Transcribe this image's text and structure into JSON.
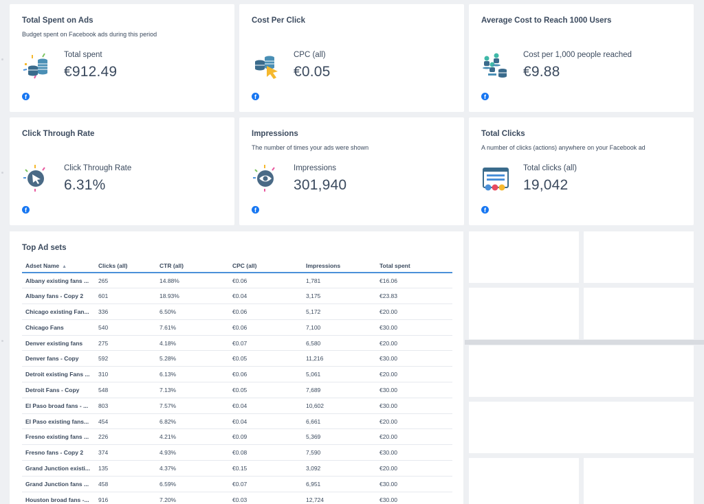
{
  "cards": [
    {
      "title": "Total Spent on Ads",
      "subtitle": "Budget spent on Facebook ads during this period",
      "label": "Total spent",
      "value": "€912.49",
      "icon": "coins-stack-icon"
    },
    {
      "title": "Cost Per Click",
      "subtitle": "",
      "label": "CPC (all)",
      "value": "€0.05",
      "icon": "coins-cursor-icon"
    },
    {
      "title": "Average Cost to Reach 1000 Users",
      "subtitle": "",
      "label": "Cost per 1,000 people reached",
      "value": "€9.88",
      "icon": "people-coins-icon"
    },
    {
      "title": "Click Through Rate",
      "subtitle": "",
      "label": "Click Through Rate",
      "value": "6.31%",
      "icon": "cursor-click-icon"
    },
    {
      "title": "Impressions",
      "subtitle": "The number of times your ads were shown",
      "label": "Impressions",
      "value": "301,940",
      "icon": "eye-icon"
    },
    {
      "title": "Total Clicks",
      "subtitle": "A number of clicks (actions) anywhere on your Facebook ad",
      "label": "Total clicks (all)",
      "value": "19,042",
      "icon": "reactions-icon"
    }
  ],
  "facebook_glyph": "f",
  "table": {
    "title": "Top Ad sets",
    "columns": [
      "Adset Name",
      "Clicks (all)",
      "CTR (all)",
      "CPC (all)",
      "Impressions",
      "Total spent"
    ],
    "sort_indicator": "▲",
    "rows": [
      [
        "Albany existing fans ...",
        "265",
        "14.88%",
        "€0.06",
        "1,781",
        "€16.06"
      ],
      [
        "Albany fans - Copy 2",
        "601",
        "18.93%",
        "€0.04",
        "3,175",
        "€23.83"
      ],
      [
        "Chicago existing Fan...",
        "336",
        "6.50%",
        "€0.06",
        "5,172",
        "€20.00"
      ],
      [
        "Chicago Fans",
        "540",
        "7.61%",
        "€0.06",
        "7,100",
        "€30.00"
      ],
      [
        "Denver existing fans",
        "275",
        "4.18%",
        "€0.07",
        "6,580",
        "€20.00"
      ],
      [
        "Denver fans - Copy",
        "592",
        "5.28%",
        "€0.05",
        "11,216",
        "€30.00"
      ],
      [
        "Detroit existing Fans ...",
        "310",
        "6.13%",
        "€0.06",
        "5,061",
        "€20.00"
      ],
      [
        "Detroit Fans - Copy",
        "548",
        "7.13%",
        "€0.05",
        "7,689",
        "€30.00"
      ],
      [
        "El Paso broad fans - ...",
        "803",
        "7.57%",
        "€0.04",
        "10,602",
        "€30.00"
      ],
      [
        "El Paso existing fans...",
        "454",
        "6.82%",
        "€0.04",
        "6,661",
        "€20.00"
      ],
      [
        "Fresno existing fans ...",
        "226",
        "4.21%",
        "€0.09",
        "5,369",
        "€20.00"
      ],
      [
        "Fresno fans - Copy 2",
        "374",
        "4.93%",
        "€0.08",
        "7,590",
        "€30.00"
      ],
      [
        "Grand Junction existi...",
        "135",
        "4.37%",
        "€0.15",
        "3,092",
        "€20.00"
      ],
      [
        "Grand Junction fans ...",
        "458",
        "6.59%",
        "€0.07",
        "6,951",
        "€30.00"
      ],
      [
        "Houston broad fans -...",
        "916",
        "7.20%",
        "€0.03",
        "12,724",
        "€30.00"
      ]
    ]
  },
  "colors": {
    "accent": "#4a90d9",
    "facebook": "#1877f2",
    "text": "#3b4a5e",
    "coin": "#3a6b8c",
    "yellow": "#f5b82e"
  }
}
